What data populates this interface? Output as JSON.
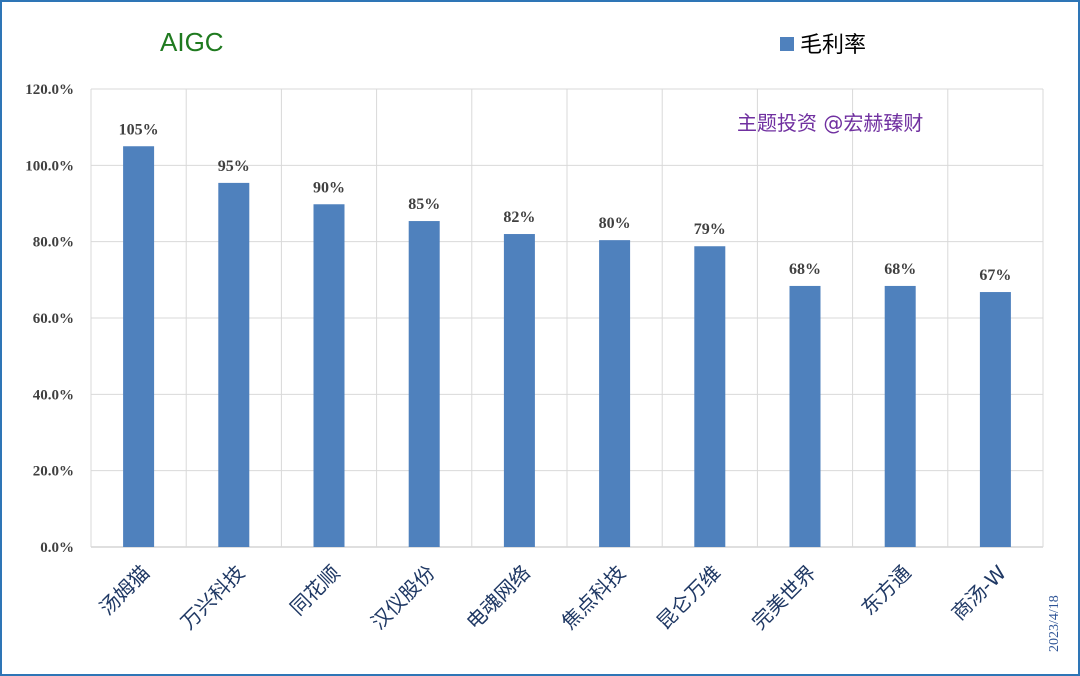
{
  "chart_data": {
    "type": "bar",
    "title": "AIGC",
    "watermark": "主题投资 @宏赫臻财",
    "date_note": "2023/4/18",
    "categories": [
      "汤姆猫",
      "万兴科技",
      "同花顺",
      "汉仪股份",
      "电魂网络",
      "焦点科技",
      "昆仑万维",
      "完美世界",
      "东方通",
      "商汤-W"
    ],
    "series": [
      {
        "name": "毛利率",
        "values": [
          1.05,
          0.954,
          0.898,
          0.854,
          0.82,
          0.804,
          0.788,
          0.684,
          0.684,
          0.668
        ],
        "data_labels": [
          "105%",
          "95%",
          "90%",
          "85%",
          "82%",
          "80%",
          "79%",
          "68%",
          "68%",
          "67%"
        ]
      }
    ],
    "ylim": [
      0,
      1.2
    ],
    "y_ticks": [
      "0.0%",
      "20.0%",
      "40.0%",
      "60.0%",
      "80.0%",
      "100.0%",
      "120.0%"
    ],
    "grid": true,
    "legend_position": "top-right",
    "colors": {
      "bar": "#4f81bd",
      "title": "#1f7a1f",
      "watermark": "#7030a0",
      "date": "#2f5597",
      "grid": "#d9d9d9",
      "frame": "#2e75b6"
    }
  }
}
